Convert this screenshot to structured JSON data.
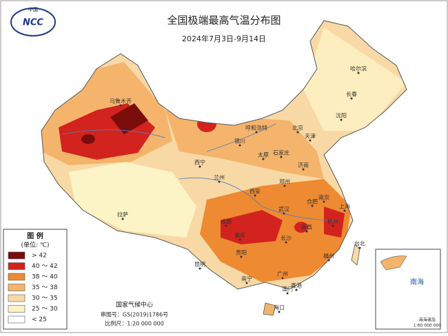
{
  "header": {
    "title": "全国极端最高气温分布图",
    "subtitle": "2024年7月3日-9月14日",
    "logo_top": "中国",
    "logo_text": "NCC"
  },
  "legend": {
    "title": "图 例",
    "unit": "(单位: ℃)",
    "items": [
      {
        "label": "> 42",
        "color": "#7a0c0c"
      },
      {
        "label": "40 ～ 42",
        "color": "#d2231e"
      },
      {
        "label": "38 ～ 40",
        "color": "#ee8a32"
      },
      {
        "label": "35 ～ 38",
        "color": "#f5b46c"
      },
      {
        "label": "30 ～ 35",
        "color": "#f8d9a6"
      },
      {
        "label": "25 ～ 30",
        "color": "#fcf3c6"
      },
      {
        "label": "< 25",
        "color": "#ffffff"
      }
    ]
  },
  "footer": {
    "org": "国家气候中心",
    "approval": "审图号：GS(2019)1786号",
    "scale": "比例尺：1:20 000 000"
  },
  "inset": {
    "label": "南海",
    "caption": "南海诸岛",
    "scale": "1:60 000 000"
  },
  "cities": [
    "乌鲁木齐",
    "拉萨",
    "西宁",
    "兰州",
    "银川",
    "呼和浩特",
    "北京",
    "天津",
    "石家庄",
    "太原",
    "济南",
    "郑州",
    "西安",
    "成都",
    "重庆",
    "武汉",
    "长沙",
    "南昌",
    "合肥",
    "南京",
    "上海",
    "杭州",
    "福州",
    "广州",
    "南宁",
    "海口",
    "贵阳",
    "昆明",
    "哈尔滨",
    "长春",
    "沈阳",
    "台北",
    "香港",
    "澳门"
  ]
}
